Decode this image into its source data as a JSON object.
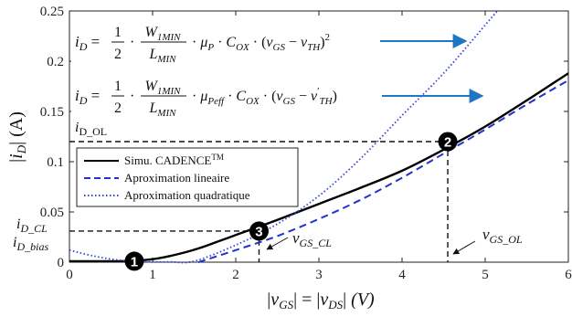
{
  "chart_data": {
    "type": "line",
    "xlabel": "|v_GS| = |v_DS| (V)",
    "ylabel": "|i_D| (A)",
    "xlim": [
      0,
      6
    ],
    "ylim": [
      0,
      0.25
    ],
    "xticks": [
      0,
      1,
      2,
      3,
      4,
      5,
      6
    ],
    "yticks": [
      0,
      0.05,
      0.1,
      0.15,
      0.2,
      0.25
    ],
    "xtick_labels": [
      "0",
      "1",
      "2",
      "3",
      "4",
      "5",
      "6"
    ],
    "ytick_labels": [
      "0",
      "0.05",
      "0.1",
      "0.15",
      "0.2",
      "0.25"
    ],
    "grid": false,
    "legend_position": "center-left",
    "series": [
      {
        "name": "Simu. CADENCE™",
        "style": "solid",
        "color": "#000000",
        "x": [
          0,
          0.3,
          0.6,
          0.8,
          1.0,
          1.2,
          1.4,
          1.6,
          1.8,
          2.0,
          2.2,
          2.5,
          3.0,
          3.5,
          4.0,
          4.5,
          5.0,
          5.5,
          6.0
        ],
        "y": [
          0.001,
          0.001,
          0.001,
          0.0015,
          0.003,
          0.006,
          0.01,
          0.015,
          0.021,
          0.027,
          0.033,
          0.042,
          0.058,
          0.074,
          0.091,
          0.112,
          0.135,
          0.161,
          0.188
        ]
      },
      {
        "name": "Aproximation lineaire",
        "style": "dashed",
        "color": "#2233cc",
        "x": [
          1.55,
          2.0,
          2.5,
          3.0,
          3.5,
          4.0,
          4.5,
          5.0,
          5.5,
          6.0
        ],
        "y": [
          0.0,
          0.012,
          0.026,
          0.043,
          0.062,
          0.084,
          0.108,
          0.132,
          0.157,
          0.181
        ]
      },
      {
        "name": "Aproximation quadratique",
        "style": "dotted",
        "color": "#3344dd",
        "x": [
          0,
          0.3,
          0.6,
          0.9,
          1.2,
          1.5,
          2.0,
          2.5,
          3.0,
          3.5,
          4.0,
          4.5,
          5.0,
          5.3
        ],
        "y": [
          0.012,
          0.006,
          0.002,
          0.0005,
          0.0003,
          0.001,
          0.017,
          0.038,
          0.066,
          0.103,
          0.146,
          0.188,
          0.236,
          0.265
        ]
      }
    ],
    "markers": [
      {
        "label": "1",
        "x": 0.78,
        "y": 0.001
      },
      {
        "label": "2",
        "x": 4.55,
        "y": 0.12
      },
      {
        "label": "3",
        "x": 2.28,
        "y": 0.031
      }
    ],
    "reference_lines": [
      {
        "label": "i_D_OL",
        "y": 0.12,
        "x_end": 4.55
      },
      {
        "label": "i_D_CL",
        "y": 0.031,
        "x_end": 2.28
      },
      {
        "label": "i_D_bias",
        "y": 0.001,
        "x_end": 0.78
      }
    ],
    "annotations": [
      {
        "text": "v_GS_CL",
        "x": 2.28
      },
      {
        "text": "v_GS_OL",
        "x": 4.55
      }
    ],
    "equations": [
      "i_D = 1/2 · W_1MIN / L_MIN · μ_P · C_OX · (v_GS − v_TH)²",
      "i_D = 1/2 · W_1MIN / L_MIN · μ_Peff · C_OX · (v_GS − v′_TH)"
    ],
    "arrow_color": "#1f77c4"
  }
}
